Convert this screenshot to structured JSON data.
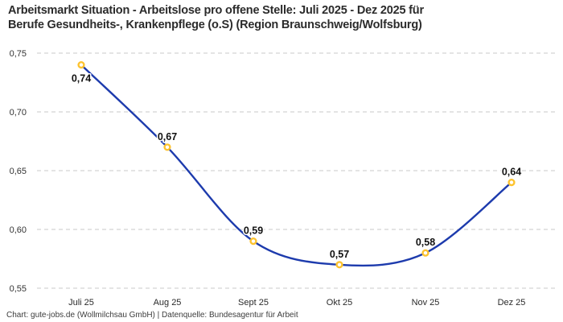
{
  "header": {
    "title_lines": [
      "Arbeitsmarkt Situation - Arbeitslose pro offene Stelle: Juli 2025 - Dez 2025 für",
      "Berufe Gesundheits-, Krankenpflege (o.S) (Region Braunschweig/Wolfsburg)"
    ]
  },
  "chart_data": {
    "type": "line",
    "title": "Arbeitsmarkt Situation - Arbeitslose pro offene Stelle: Juli 2025 - Dez 2025 für Berufe Gesundheits-, Krankenpflege (o.S) (Region Braunschweig/Wolfsburg)",
    "categories": [
      "Juli 25",
      "Aug 25",
      "Sept 25",
      "Okt 25",
      "Nov 25",
      "Dez 25"
    ],
    "values": [
      0.74,
      0.67,
      0.59,
      0.57,
      0.58,
      0.64
    ],
    "value_labels": [
      "0,74",
      "0,67",
      "0,59",
      "0,57",
      "0,58",
      "0,64"
    ],
    "label_positions": [
      "below",
      "above",
      "above",
      "above",
      "above",
      "above"
    ],
    "yticks": [
      0.75,
      0.7,
      0.65,
      0.6,
      0.55
    ],
    "ytick_labels": [
      "0,75",
      "0,70",
      "0,65",
      "0,60",
      "0,55"
    ],
    "ylim": [
      0.55,
      0.75
    ],
    "xlabel": "",
    "ylabel": "",
    "grid": "horizontal-dashed",
    "legend": "none",
    "line_color": "#1d3bad",
    "marker_stroke_color": "#fdc32f",
    "marker_fill_color": "#ffffff",
    "grid_color": "#c8c8c8"
  },
  "footer": {
    "text": "Chart: gute-jobs.de (Wollmilchsau GmbH) | Datenquelle: Bundesagentur für Arbeit"
  }
}
